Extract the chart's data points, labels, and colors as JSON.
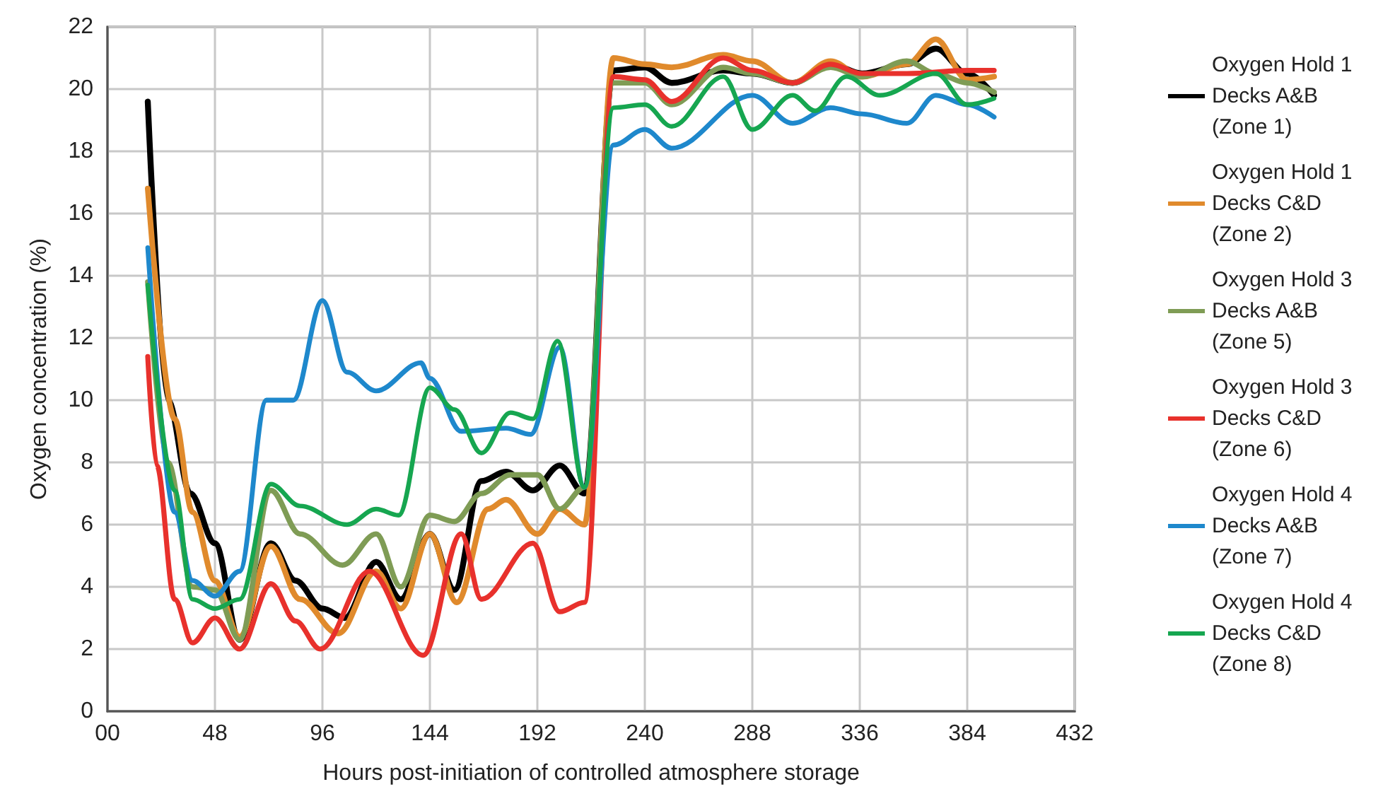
{
  "chart_data": {
    "type": "line",
    "xlabel": "Hours post-initiation of controlled atmosphere storage",
    "ylabel": "Oxygen concentration (%)",
    "xlim": [
      0,
      432
    ],
    "xticks": [
      {
        "value": 0,
        "label": "00"
      },
      48,
      96,
      144,
      192,
      240,
      288,
      336,
      384,
      432
    ],
    "ylim": [
      0,
      22
    ],
    "yticks": [
      0,
      2,
      4,
      6,
      8,
      10,
      12,
      14,
      16,
      18,
      20,
      22
    ],
    "grid": true,
    "legend": "right",
    "marker": "none",
    "line_style": "solid",
    "series": [
      {
        "name": "Oxygen Hold 1 Decks A&B (Zone 1)",
        "color": "#000000",
        "x": [
          18,
          27,
          37,
          48,
          59,
          73,
          84,
          96,
          106,
          120,
          131,
          144,
          155,
          167,
          178,
          190,
          202,
          213,
          226,
          240,
          252,
          275,
          288,
          306,
          323,
          337,
          357,
          370,
          384,
          396
        ],
        "values": [
          19.6,
          10,
          7,
          5.4,
          2.3,
          5.4,
          4.2,
          3.3,
          3.0,
          4.8,
          3.6,
          5.7,
          3.9,
          7.4,
          7.7,
          7.1,
          7.9,
          7.0,
          20.6,
          20.7,
          20.2,
          20.6,
          20.5,
          20.2,
          20.8,
          20.5,
          20.8,
          21.3,
          20.5,
          19.8
        ]
      },
      {
        "name": "Oxygen Hold 1 Decks C&D (Zone 2)",
        "color": "#e08a2c",
        "x": [
          18,
          30,
          38,
          48,
          59,
          73,
          86,
          103,
          120,
          131,
          144,
          156,
          170,
          178,
          192,
          202,
          213,
          226,
          240,
          252,
          275,
          288,
          306,
          323,
          337,
          357,
          370,
          384,
          396
        ],
        "values": [
          16.8,
          9.4,
          6.4,
          4.2,
          2.4,
          5.3,
          3.6,
          2.5,
          4.5,
          3.3,
          5.7,
          3.5,
          6.5,
          6.8,
          5.7,
          6.5,
          6.0,
          21.0,
          20.8,
          20.7,
          21.1,
          20.9,
          20.2,
          20.9,
          20.4,
          20.8,
          21.6,
          20.3,
          20.4
        ]
      },
      {
        "name": "Oxygen Hold 3 Decks A&B (Zone 5)",
        "color": "#7f9c55",
        "x": [
          18,
          27,
          38,
          48,
          59,
          73,
          86,
          105,
          120,
          131,
          144,
          155,
          167,
          180,
          192,
          202,
          213,
          226,
          240,
          252,
          275,
          288,
          306,
          323,
          337,
          357,
          370,
          384,
          396
        ],
        "values": [
          13.8,
          8,
          4.0,
          3.9,
          2.3,
          7.1,
          5.7,
          4.7,
          5.7,
          4.0,
          6.3,
          6.1,
          7.0,
          7.6,
          7.6,
          6.5,
          7.2,
          20.2,
          20.2,
          19.5,
          20.7,
          20.5,
          20.2,
          20.7,
          20.4,
          20.9,
          20.5,
          20.2,
          19.9
        ]
      },
      {
        "name": "Oxygen Hold 3 Decks C&D (Zone 6)",
        "color": "#e8312c",
        "x": [
          18,
          22,
          30,
          38,
          48,
          59,
          73,
          84,
          95,
          117,
          141,
          158,
          167,
          190,
          202,
          213,
          226,
          240,
          252,
          275,
          288,
          306,
          323,
          337,
          357,
          384,
          396
        ],
        "values": [
          11.4,
          7.9,
          3.6,
          2.2,
          3.0,
          2.0,
          4.1,
          2.9,
          2.0,
          4.5,
          1.8,
          5.7,
          3.6,
          5.4,
          3.2,
          3.5,
          20.4,
          20.3,
          19.6,
          21.0,
          20.6,
          20.2,
          20.8,
          20.5,
          20.5,
          20.6,
          20.6
        ]
      },
      {
        "name": "Oxygen Hold 4 Decks A&B (Zone 7)",
        "color": "#1e88cc",
        "x": [
          18,
          30,
          38,
          48,
          59,
          71,
          83,
          96,
          107,
          120,
          140,
          144,
          158,
          178,
          189,
          202,
          213,
          226,
          240,
          252,
          288,
          306,
          323,
          337,
          357,
          370,
          384,
          396
        ],
        "values": [
          14.9,
          6.4,
          4.2,
          3.7,
          4.5,
          10.0,
          10.0,
          13.2,
          10.9,
          10.3,
          11.2,
          10.7,
          9.0,
          9.1,
          8.9,
          11.7,
          7.2,
          18.2,
          18.7,
          18.1,
          19.8,
          18.9,
          19.4,
          19.2,
          18.9,
          19.8,
          19.5,
          19.1
        ]
      },
      {
        "name": "Oxygen Hold 4 Decks C&D (Zone 8)",
        "color": "#16a650",
        "x": [
          18,
          30,
          38,
          48,
          59,
          73,
          86,
          107,
          120,
          130,
          144,
          155,
          167,
          180,
          190,
          201,
          213,
          226,
          240,
          252,
          275,
          288,
          306,
          316,
          330,
          345,
          370,
          384,
          396
        ],
        "values": [
          13.7,
          7.1,
          3.6,
          3.3,
          3.6,
          7.3,
          6.6,
          6.0,
          6.5,
          6.3,
          10.4,
          9.7,
          8.3,
          9.6,
          9.4,
          11.9,
          7.2,
          19.4,
          19.5,
          18.8,
          20.4,
          18.7,
          19.8,
          19.3,
          20.4,
          19.8,
          20.5,
          19.5,
          19.7
        ]
      }
    ]
  }
}
